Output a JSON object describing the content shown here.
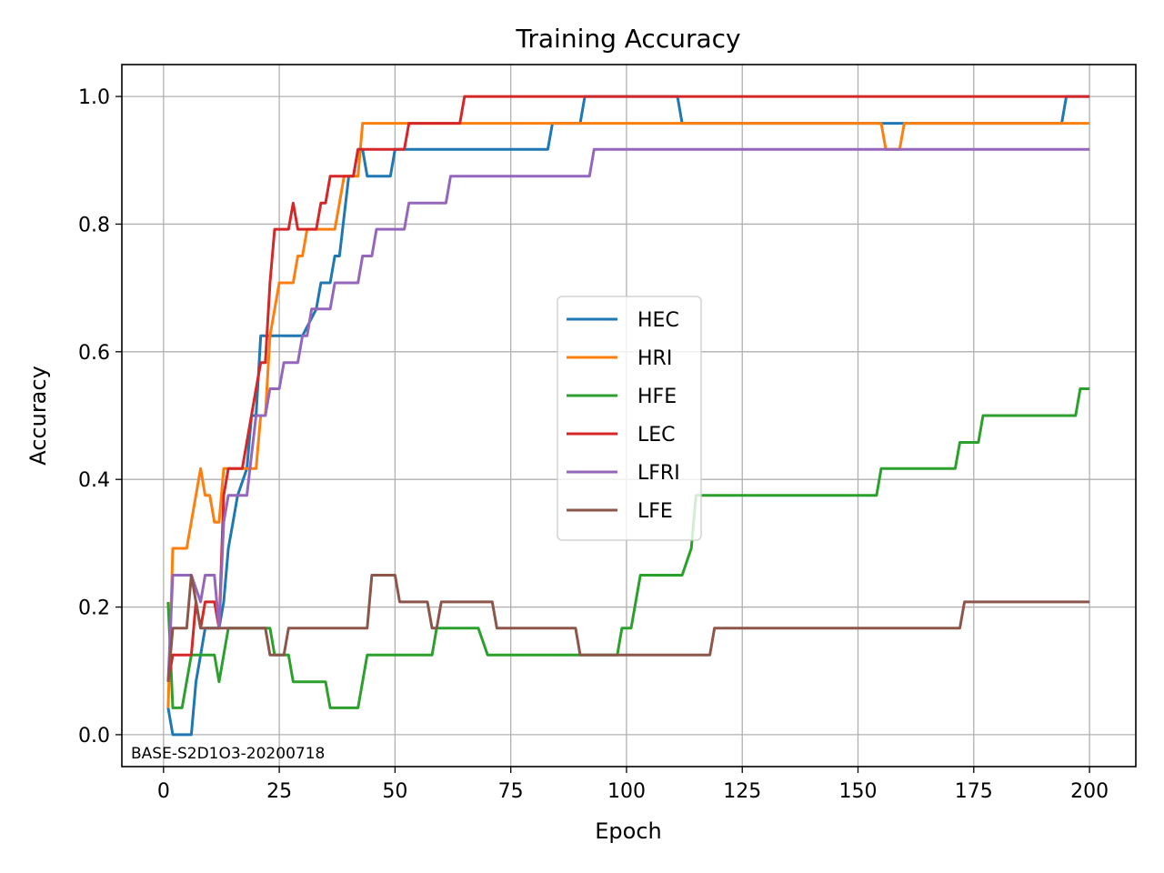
{
  "chart_data": {
    "type": "line",
    "title": "Training Accuracy",
    "xlabel": "Epoch",
    "ylabel": "Accuracy",
    "xlim": [
      -9,
      210
    ],
    "ylim": [
      -0.05,
      1.05
    ],
    "xticks": [
      0,
      25,
      50,
      75,
      100,
      125,
      150,
      175,
      200
    ],
    "xtick_labels": [
      "0",
      "25",
      "50",
      "75",
      "100",
      "125",
      "150",
      "175",
      "200"
    ],
    "yticks": [
      0.0,
      0.2,
      0.4,
      0.6,
      0.8,
      1.0
    ],
    "ytick_labels": [
      "0.0",
      "0.2",
      "0.4",
      "0.6",
      "0.8",
      "1.0"
    ],
    "grid": true,
    "legend_position": "center-right",
    "annotation": "BASE-S2D1O3-20200718",
    "series": [
      {
        "name": "HEC",
        "color": "#1f77b4",
        "points": [
          [
            1,
            0.042
          ],
          [
            2,
            0.0
          ],
          [
            5,
            0.0
          ],
          [
            6,
            0.0
          ],
          [
            7,
            0.083
          ],
          [
            8,
            0.125
          ],
          [
            9,
            0.167
          ],
          [
            12,
            0.167
          ],
          [
            13,
            0.208
          ],
          [
            14,
            0.292
          ],
          [
            15,
            0.333
          ],
          [
            16,
            0.375
          ],
          [
            18,
            0.417
          ],
          [
            19,
            0.5
          ],
          [
            20,
            0.5
          ],
          [
            21,
            0.625
          ],
          [
            24,
            0.625
          ],
          [
            29,
            0.625
          ],
          [
            30,
            0.625
          ],
          [
            33,
            0.667
          ],
          [
            34,
            0.708
          ],
          [
            36,
            0.708
          ],
          [
            37,
            0.75
          ],
          [
            38,
            0.75
          ],
          [
            40,
            0.875
          ],
          [
            41,
            0.875
          ],
          [
            42,
            0.917
          ],
          [
            43,
            0.917
          ],
          [
            44,
            0.875
          ],
          [
            49,
            0.875
          ],
          [
            50,
            0.917
          ],
          [
            53,
            0.917
          ],
          [
            83,
            0.917
          ],
          [
            84,
            0.958
          ],
          [
            90,
            0.958
          ],
          [
            91,
            1.0
          ],
          [
            111,
            1.0
          ],
          [
            112,
            0.958
          ],
          [
            194,
            0.958
          ],
          [
            195,
            1.0
          ],
          [
            200,
            1.0
          ]
        ]
      },
      {
        "name": "HRI",
        "color": "#ff7f0e",
        "points": [
          [
            1,
            0.042
          ],
          [
            2,
            0.292
          ],
          [
            5,
            0.292
          ],
          [
            8,
            0.417
          ],
          [
            9,
            0.375
          ],
          [
            10,
            0.375
          ],
          [
            11,
            0.333
          ],
          [
            12,
            0.333
          ],
          [
            13,
            0.417
          ],
          [
            14,
            0.417
          ],
          [
            17,
            0.417
          ],
          [
            20,
            0.417
          ],
          [
            21,
            0.5
          ],
          [
            22,
            0.5
          ],
          [
            23,
            0.625
          ],
          [
            25,
            0.708
          ],
          [
            28,
            0.708
          ],
          [
            29,
            0.75
          ],
          [
            30,
            0.75
          ],
          [
            31,
            0.792
          ],
          [
            37,
            0.792
          ],
          [
            38,
            0.833
          ],
          [
            39,
            0.875
          ],
          [
            42,
            0.875
          ],
          [
            43,
            0.958
          ],
          [
            155,
            0.958
          ],
          [
            156,
            0.917
          ],
          [
            159,
            0.917
          ],
          [
            160,
            0.958
          ],
          [
            200,
            0.958
          ]
        ]
      },
      {
        "name": "HFE",
        "color": "#2ca02c",
        "points": [
          [
            1,
            0.208
          ],
          [
            2,
            0.042
          ],
          [
            4,
            0.042
          ],
          [
            6,
            0.125
          ],
          [
            11,
            0.125
          ],
          [
            12,
            0.083
          ],
          [
            13,
            0.125
          ],
          [
            14,
            0.167
          ],
          [
            23,
            0.167
          ],
          [
            24,
            0.125
          ],
          [
            27,
            0.125
          ],
          [
            28,
            0.083
          ],
          [
            35,
            0.083
          ],
          [
            36,
            0.042
          ],
          [
            42,
            0.042
          ],
          [
            44,
            0.125
          ],
          [
            58,
            0.125
          ],
          [
            59,
            0.167
          ],
          [
            68,
            0.167
          ],
          [
            70,
            0.125
          ],
          [
            89,
            0.125
          ],
          [
            98,
            0.125
          ],
          [
            99,
            0.167
          ],
          [
            101,
            0.167
          ],
          [
            103,
            0.25
          ],
          [
            112,
            0.25
          ],
          [
            114,
            0.292
          ],
          [
            115,
            0.375
          ],
          [
            154,
            0.375
          ],
          [
            155,
            0.417
          ],
          [
            171,
            0.417
          ],
          [
            172,
            0.458
          ],
          [
            176,
            0.458
          ],
          [
            177,
            0.5
          ],
          [
            197,
            0.5
          ],
          [
            198,
            0.542
          ],
          [
            200,
            0.542
          ]
        ]
      },
      {
        "name": "LEC",
        "color": "#d62728",
        "points": [
          [
            1,
            0.083
          ],
          [
            2,
            0.125
          ],
          [
            6,
            0.125
          ],
          [
            7,
            0.208
          ],
          [
            8,
            0.167
          ],
          [
            9,
            0.208
          ],
          [
            11,
            0.208
          ],
          [
            12,
            0.167
          ],
          [
            13,
            0.375
          ],
          [
            14,
            0.417
          ],
          [
            17,
            0.417
          ],
          [
            20,
            0.542
          ],
          [
            21,
            0.583
          ],
          [
            22,
            0.583
          ],
          [
            23,
            0.708
          ],
          [
            24,
            0.792
          ],
          [
            27,
            0.792
          ],
          [
            28,
            0.833
          ],
          [
            29,
            0.792
          ],
          [
            33,
            0.792
          ],
          [
            34,
            0.833
          ],
          [
            35,
            0.833
          ],
          [
            36,
            0.875
          ],
          [
            41,
            0.875
          ],
          [
            42,
            0.917
          ],
          [
            52,
            0.917
          ],
          [
            53,
            0.958
          ],
          [
            64,
            0.958
          ],
          [
            65,
            1.0
          ],
          [
            200,
            1.0
          ]
        ]
      },
      {
        "name": "LFRI",
        "color": "#9467bd",
        "points": [
          [
            1,
            0.083
          ],
          [
            2,
            0.25
          ],
          [
            6,
            0.25
          ],
          [
            8,
            0.208
          ],
          [
            9,
            0.25
          ],
          [
            11,
            0.25
          ],
          [
            12,
            0.167
          ],
          [
            13,
            0.333
          ],
          [
            14,
            0.375
          ],
          [
            18,
            0.375
          ],
          [
            20,
            0.5
          ],
          [
            22,
            0.5
          ],
          [
            23,
            0.542
          ],
          [
            25,
            0.542
          ],
          [
            26,
            0.583
          ],
          [
            29,
            0.583
          ],
          [
            30,
            0.625
          ],
          [
            31,
            0.625
          ],
          [
            32,
            0.667
          ],
          [
            36,
            0.667
          ],
          [
            37,
            0.708
          ],
          [
            42,
            0.708
          ],
          [
            43,
            0.75
          ],
          [
            45,
            0.75
          ],
          [
            46,
            0.792
          ],
          [
            52,
            0.792
          ],
          [
            53,
            0.833
          ],
          [
            61,
            0.833
          ],
          [
            62,
            0.875
          ],
          [
            92,
            0.875
          ],
          [
            93,
            0.917
          ],
          [
            200,
            0.917
          ]
        ]
      },
      {
        "name": "LFE",
        "color": "#8c564b",
        "points": [
          [
            1,
            0.083
          ],
          [
            2,
            0.167
          ],
          [
            5,
            0.167
          ],
          [
            6,
            0.25
          ],
          [
            7,
            0.208
          ],
          [
            8,
            0.167
          ],
          [
            22,
            0.167
          ],
          [
            23,
            0.125
          ],
          [
            26,
            0.125
          ],
          [
            27,
            0.167
          ],
          [
            44,
            0.167
          ],
          [
            45,
            0.25
          ],
          [
            50,
            0.25
          ],
          [
            51,
            0.208
          ],
          [
            57,
            0.208
          ],
          [
            58,
            0.167
          ],
          [
            59,
            0.167
          ],
          [
            60,
            0.208
          ],
          [
            71,
            0.208
          ],
          [
            72,
            0.167
          ],
          [
            89,
            0.167
          ],
          [
            90,
            0.125
          ],
          [
            118,
            0.125
          ],
          [
            119,
            0.167
          ],
          [
            172,
            0.167
          ],
          [
            173,
            0.208
          ],
          [
            200,
            0.208
          ]
        ]
      }
    ]
  }
}
